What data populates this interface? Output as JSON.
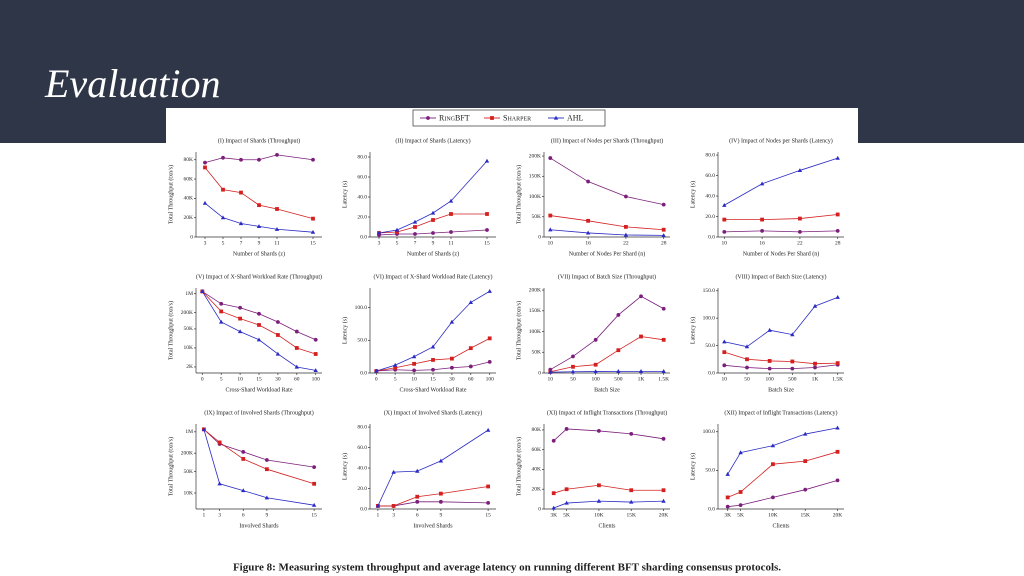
{
  "slide": {
    "title": "Evaluation"
  },
  "figure_caption": "Figure 8: Measuring system throughput and average latency on running different BFT sharding consensus protocols.",
  "series": [
    {
      "name": "RingBFT",
      "color": "#7b1f7b",
      "marker": "circle"
    },
    {
      "name": "Sharper",
      "color": "#d42020",
      "marker": "square"
    },
    {
      "name": "AHL",
      "color": "#2a2ac4",
      "marker": "triangle"
    }
  ],
  "chart_data": [
    {
      "type": "line",
      "title": "(I) Impact of Shards (Throughput)",
      "x_label": "Number of Shards (z)",
      "y_label": "Total Throughput (txn/s)",
      "x": [
        3,
        5,
        7,
        9,
        11,
        15
      ],
      "xlim": [
        2,
        16
      ],
      "xticks": [
        3,
        5,
        7,
        9,
        11,
        15
      ],
      "ylim": [
        0,
        88000
      ],
      "yticks": [
        0,
        {
          "value": 20000,
          "label": "20K"
        },
        {
          "value": 40000,
          "label": "40K"
        },
        {
          "value": 60000,
          "label": "60K"
        },
        {
          "value": 80000,
          "label": "80K"
        }
      ],
      "values": [
        [
          77000,
          82000,
          80000,
          80000,
          85000,
          80000
        ],
        [
          72000,
          49000,
          46000,
          33000,
          29000,
          19000
        ],
        [
          35000,
          20000,
          14000,
          11000,
          8000,
          5000
        ]
      ]
    },
    {
      "type": "line",
      "title": "(II) Impact of Shards (Latency)",
      "x_label": "Number of Shards (z)",
      "y_label": "Latency (s)",
      "x": [
        3,
        5,
        7,
        9,
        11,
        15
      ],
      "xlim": [
        2,
        16
      ],
      "xticks": [
        3,
        5,
        7,
        9,
        11,
        15
      ],
      "ylim": [
        0,
        85
      ],
      "yticks": [
        {
          "value": 0,
          "label": "0.0"
        },
        {
          "value": 20,
          "label": "20.0"
        },
        {
          "value": 40,
          "label": "40.0"
        },
        {
          "value": 60,
          "label": "60.0"
        },
        {
          "value": 80,
          "label": "80.0"
        }
      ],
      "values": [
        [
          2,
          3,
          3,
          4,
          5,
          7
        ],
        [
          4,
          5,
          10,
          17,
          23,
          23
        ],
        [
          4,
          7,
          15,
          24,
          36,
          76
        ]
      ]
    },
    {
      "type": "line",
      "title": "(III) Impact of Nodes per Shards (Throughput)",
      "x_label": "Number of Nodes Per Shard (n)",
      "y_label": "Total Throughput (txn/s)",
      "x": [
        10,
        16,
        22,
        28
      ],
      "xlim": [
        9,
        29
      ],
      "xticks": [
        10,
        16,
        22,
        28
      ],
      "ylim": [
        0,
        210000
      ],
      "yticks": [
        0,
        {
          "value": 50000,
          "label": "50K"
        },
        {
          "value": 100000,
          "label": "100K"
        },
        {
          "value": 150000,
          "label": "150K"
        },
        {
          "value": 200000,
          "label": "200K"
        }
      ],
      "values": [
        [
          195000,
          137000,
          100000,
          80000
        ],
        [
          53000,
          40000,
          25000,
          18000
        ],
        [
          18000,
          10000,
          5000,
          4000
        ]
      ]
    },
    {
      "type": "line",
      "title": "(IV) Impact of Nodes per Shards (Latency)",
      "x_label": "Number of Nodes Per Shard (n)",
      "y_label": "Latency (s)",
      "x": [
        10,
        16,
        22,
        28
      ],
      "xlim": [
        9,
        29
      ],
      "xticks": [
        10,
        16,
        22,
        28
      ],
      "ylim": [
        0,
        83
      ],
      "yticks": [
        {
          "value": 0,
          "label": "0.0"
        },
        {
          "value": 20,
          "label": "20.0"
        },
        {
          "value": 40,
          "label": "40.0"
        },
        {
          "value": 60,
          "label": "60.0"
        },
        {
          "value": 80,
          "label": "80.0"
        }
      ],
      "values": [
        [
          5,
          6,
          5,
          6
        ],
        [
          17,
          17,
          18,
          22
        ],
        [
          31,
          52,
          65,
          77
        ]
      ]
    },
    {
      "type": "line",
      "title": "(V) Impact of X-Shard Workload Rate (Throughput)",
      "x_label": "Cross-Shard Workload Rate",
      "y_label": "Total Throughput (txn/s)",
      "categories": [
        "0",
        "5",
        "10",
        "15",
        "30",
        "60",
        "100"
      ],
      "yscale": "log",
      "ylim": [
        1200,
        1600000
      ],
      "yticks": [
        {
          "value": 2000,
          "label": "2K"
        },
        {
          "value": 10000,
          "label": "10K"
        },
        {
          "value": 50000,
          "label": "50K"
        },
        {
          "value": 200000,
          "label": "200K"
        },
        {
          "value": 1000000,
          "label": "1M"
        }
      ],
      "values": [
        [
          1200000,
          420000,
          300000,
          180000,
          90000,
          40000,
          20000
        ],
        [
          1200000,
          220000,
          120000,
          70000,
          30000,
          10000,
          6000
        ],
        [
          1200000,
          90000,
          40000,
          20000,
          6000,
          2000,
          1500
        ]
      ]
    },
    {
      "type": "line",
      "title": "(VI) Impact of X-Shard Workload Rate (Latency)",
      "x_label": "Cross-Shard Workload Rate",
      "y_label": "Latency (s)",
      "categories": [
        "0",
        "5",
        "10",
        "15",
        "30",
        "60",
        "100"
      ],
      "ylim": [
        0,
        130
      ],
      "yticks": [
        {
          "value": 0,
          "label": "0.0"
        },
        {
          "value": 50,
          "label": "50.0"
        },
        {
          "value": 100,
          "label": "100.0"
        }
      ],
      "values": [
        [
          3,
          5,
          4,
          5,
          8,
          10,
          17
        ],
        [
          3,
          8,
          14,
          20,
          22,
          38,
          53
        ],
        [
          3,
          12,
          25,
          40,
          78,
          108,
          125
        ]
      ]
    },
    {
      "type": "line",
      "title": "(VII) Impact of Batch Size (Throughput)",
      "x_label": "Batch Size",
      "y_label": "Total Throughput (txn/s)",
      "categories": [
        "10",
        "50",
        "100",
        "500",
        "1K",
        "1.5K"
      ],
      "ylim": [
        0,
        205000
      ],
      "yticks": [
        0,
        {
          "value": 50000,
          "label": "50K"
        },
        {
          "value": 100000,
          "label": "100K"
        },
        {
          "value": 150000,
          "label": "150K"
        },
        {
          "value": 200000,
          "label": "200K"
        }
      ],
      "values": [
        [
          8000,
          40000,
          80000,
          140000,
          185000,
          155000
        ],
        [
          3000,
          15000,
          20000,
          55000,
          88000,
          80000
        ],
        [
          2000,
          3000,
          3500,
          4000,
          4000,
          4000
        ]
      ]
    },
    {
      "type": "line",
      "title": "(VIII) Impact of Batch Size (Latency)",
      "x_label": "Batch Size",
      "y_label": "Latency (s)",
      "categories": [
        "10",
        "50",
        "100",
        "500",
        "1K",
        "1.5K"
      ],
      "ylim": [
        0,
        155
      ],
      "yticks": [
        {
          "value": 0,
          "label": "0.0"
        },
        {
          "value": 50,
          "label": "50.0"
        },
        {
          "value": 100,
          "label": "100.0"
        },
        {
          "value": 150,
          "label": "150.0"
        }
      ],
      "values": [
        [
          14,
          10,
          8,
          8,
          10,
          15
        ],
        [
          38,
          25,
          22,
          21,
          17,
          18
        ],
        [
          57,
          48,
          78,
          70,
          122,
          138
        ]
      ]
    },
    {
      "type": "line",
      "title": "(IX) Impact of Involved Shards (Throughput)",
      "x_label": "Involved Shards",
      "y_label": "Total Throughput (txn/s)",
      "x": [
        1,
        3,
        6,
        9,
        15
      ],
      "xlim": [
        0,
        16
      ],
      "xticks": [
        1,
        3,
        6,
        9,
        15
      ],
      "yscale": "log",
      "ylim": [
        3000,
        1800000
      ],
      "yticks": [
        {
          "value": 10000,
          "label": "10K"
        },
        {
          "value": 50000,
          "label": "50K"
        },
        {
          "value": 200000,
          "label": "200K"
        },
        {
          "value": 1000000,
          "label": "1M"
        }
      ],
      "values": [
        [
          1200000,
          400000,
          220000,
          120000,
          70000
        ],
        [
          1200000,
          450000,
          130000,
          60000,
          20000
        ],
        [
          1200000,
          20000,
          12000,
          7000,
          4000
        ]
      ]
    },
    {
      "type": "line",
      "title": "(X) Impact of Involved Shards (Latency)",
      "x_label": "Involved Shards",
      "y_label": "Latency (s)",
      "x": [
        1,
        3,
        6,
        9,
        15
      ],
      "xlim": [
        0,
        16
      ],
      "xticks": [
        1,
        3,
        6,
        9,
        15
      ],
      "ylim": [
        0,
        83
      ],
      "yticks": [
        {
          "value": 0,
          "label": "0.0"
        },
        {
          "value": 20,
          "label": "20.0"
        },
        {
          "value": 40,
          "label": "40.0"
        },
        {
          "value": 60,
          "label": "60.0"
        },
        {
          "value": 80,
          "label": "80.0"
        }
      ],
      "values": [
        [
          3,
          3,
          7,
          7,
          6
        ],
        [
          3,
          3,
          12,
          15,
          22
        ],
        [
          3,
          36,
          37,
          47,
          77
        ]
      ]
    },
    {
      "type": "line",
      "title": "(XI) Impact of Inflight Transactions (Throughput)",
      "x_label": "Clients",
      "y_label": "Total Throughput (txn/s)",
      "x": [
        3000,
        5000,
        10000,
        15000,
        20000
      ],
      "xlim": [
        1500,
        21000
      ],
      "xticks": [
        {
          "value": 3000,
          "label": "3K"
        },
        {
          "value": 5000,
          "label": "5K"
        },
        {
          "value": 10000,
          "label": "10K"
        },
        {
          "value": 15000,
          "label": "15K"
        },
        {
          "value": 20000,
          "label": "20K"
        }
      ],
      "ylim": [
        0,
        86000
      ],
      "yticks": [
        0,
        {
          "value": 20000,
          "label": "20K"
        },
        {
          "value": 40000,
          "label": "40K"
        },
        {
          "value": 60000,
          "label": "60K"
        },
        {
          "value": 80000,
          "label": "80K"
        }
      ],
      "values": [
        [
          69000,
          81000,
          79000,
          76000,
          71000
        ],
        [
          16000,
          20000,
          24000,
          19000,
          19000
        ],
        [
          1000,
          6000,
          8000,
          7000,
          8000
        ]
      ]
    },
    {
      "type": "line",
      "title": "(XII) Impact of Inflight Transactions (Latency)",
      "x_label": "Clients",
      "y_label": "Latency (s)",
      "x": [
        3000,
        5000,
        10000,
        15000,
        20000
      ],
      "xlim": [
        1500,
        21000
      ],
      "xticks": [
        {
          "value": 3000,
          "label": "3K"
        },
        {
          "value": 5000,
          "label": "5K"
        },
        {
          "value": 10000,
          "label": "10K"
        },
        {
          "value": 15000,
          "label": "15K"
        },
        {
          "value": 20000,
          "label": "20K"
        }
      ],
      "ylim": [
        0,
        110
      ],
      "yticks": [
        {
          "value": 0,
          "label": "0.0"
        },
        {
          "value": 50,
          "label": "50.0"
        },
        {
          "value": 100,
          "label": "100.0"
        }
      ],
      "values": [
        [
          3,
          5,
          15,
          25,
          37
        ],
        [
          15,
          22,
          58,
          62,
          74
        ],
        [
          45,
          73,
          82,
          97,
          105
        ]
      ]
    }
  ]
}
